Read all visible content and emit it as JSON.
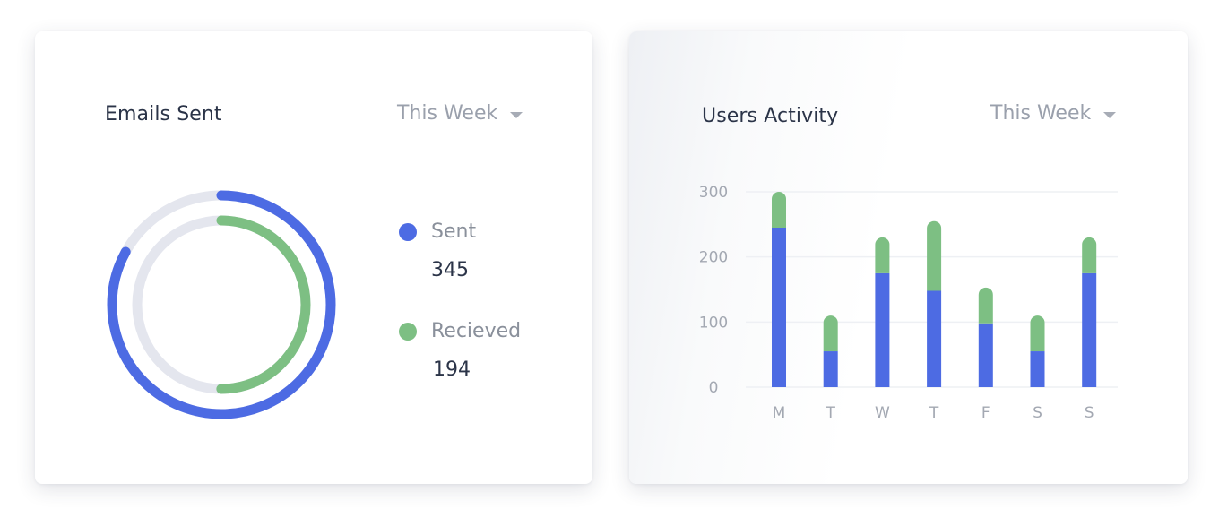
{
  "emails_card": {
    "title": "Emails Sent",
    "period": "This Week",
    "legend": [
      {
        "label": "Sent",
        "value": "345",
        "color": "#4d6be3"
      },
      {
        "label": "Recieved",
        "value": "194",
        "color": "#7dbf83"
      }
    ],
    "donut": {
      "track_color": "#e4e6ee",
      "sent_fraction": 0.83,
      "received_fraction": 0.5
    }
  },
  "activity_card": {
    "title": "Users Activity",
    "period": "This Week",
    "chart_data": {
      "type": "bar",
      "stacked": true,
      "categories": [
        "M",
        "T",
        "W",
        "T",
        "F",
        "S",
        "S"
      ],
      "series": [
        {
          "values": [
            245,
            55,
            175,
            148,
            98,
            55,
            175
          ],
          "color": "#4d6be3"
        },
        {
          "values": [
            55,
            55,
            55,
            107,
            55,
            55,
            55
          ],
          "color": "#7dbf83"
        }
      ],
      "ylim": [
        0,
        300
      ],
      "yticks": [
        0,
        100,
        200,
        300
      ],
      "grid": true,
      "xlabel": "",
      "ylabel": ""
    }
  }
}
